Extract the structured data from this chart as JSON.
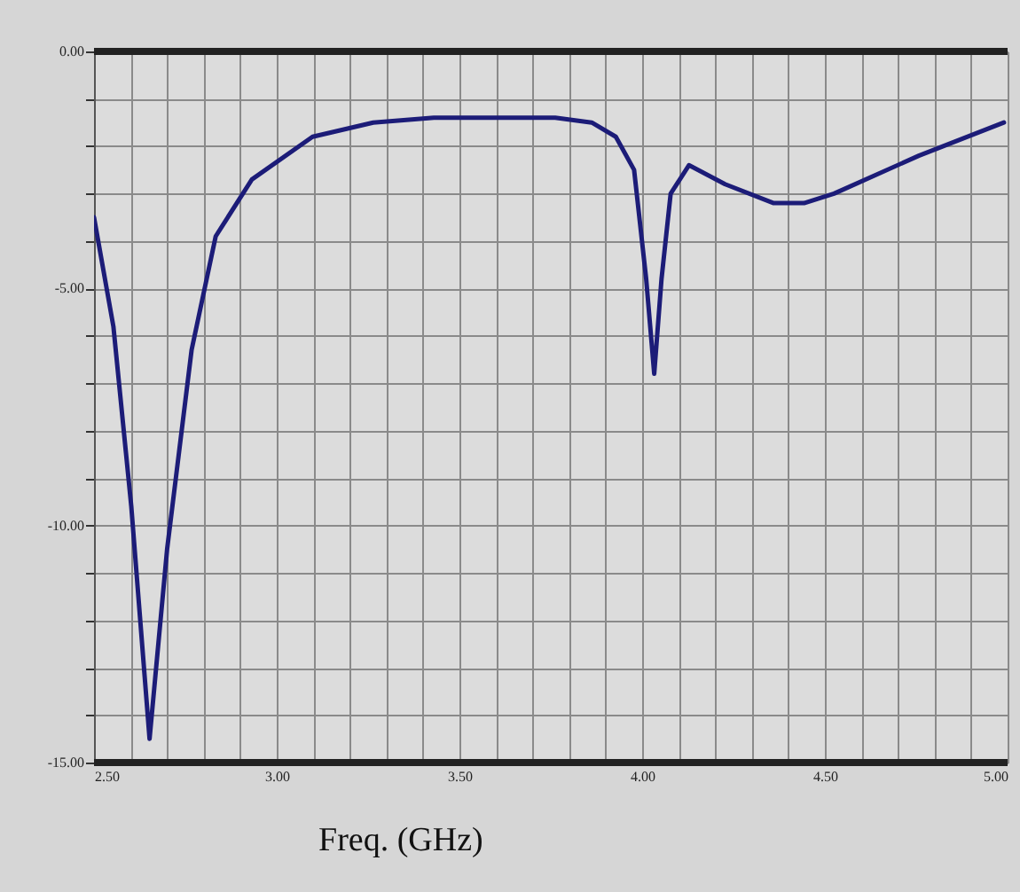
{
  "chart_data": {
    "type": "line",
    "xlabel": "Freq. (GHz)",
    "x": [
      2.5,
      2.553,
      2.602,
      2.652,
      2.7,
      2.767,
      2.833,
      2.932,
      3.098,
      3.264,
      3.43,
      3.596,
      3.762,
      3.862,
      3.928,
      3.978,
      4.011,
      4.033,
      4.053,
      4.078,
      4.128,
      4.227,
      4.36,
      4.443,
      4.525,
      4.757,
      4.99
    ],
    "series": [
      {
        "color": "#1c1c78",
        "values": [
          -3.5,
          -5.8,
          -9.6,
          -14.5,
          -10.5,
          -6.3,
          -3.9,
          -2.7,
          -1.8,
          -1.5,
          -1.4,
          -1.4,
          -1.4,
          -1.5,
          -1.8,
          -2.5,
          -4.8,
          -6.8,
          -4.8,
          -3.0,
          -2.4,
          -2.8,
          -3.2,
          -3.2,
          -3.0,
          -2.2,
          -1.5
        ]
      }
    ],
    "xlim": [
      2.5,
      5.0
    ],
    "ylim": [
      -15,
      0
    ],
    "xticks": [
      {
        "value": 2.5,
        "label": "2.50"
      },
      {
        "value": 2.6,
        "label": null
      },
      {
        "value": 2.7,
        "label": null
      },
      {
        "value": 2.8,
        "label": null
      },
      {
        "value": 2.9,
        "label": null
      },
      {
        "value": 3.0,
        "label": "3.00"
      },
      {
        "value": 3.1,
        "label": null
      },
      {
        "value": 3.2,
        "label": null
      },
      {
        "value": 3.3,
        "label": null
      },
      {
        "value": 3.4,
        "label": null
      },
      {
        "value": 3.5,
        "label": "3.50"
      },
      {
        "value": 3.6,
        "label": null
      },
      {
        "value": 3.7,
        "label": null
      },
      {
        "value": 3.8,
        "label": null
      },
      {
        "value": 3.9,
        "label": null
      },
      {
        "value": 4.0,
        "label": "4.00"
      },
      {
        "value": 4.1,
        "label": null
      },
      {
        "value": 4.2,
        "label": null
      },
      {
        "value": 4.3,
        "label": null
      },
      {
        "value": 4.4,
        "label": null
      },
      {
        "value": 4.5,
        "label": "4.50"
      },
      {
        "value": 4.6,
        "label": null
      },
      {
        "value": 4.7,
        "label": null
      },
      {
        "value": 4.8,
        "label": null
      },
      {
        "value": 4.9,
        "label": null
      },
      {
        "value": 5.0,
        "label": "5.00"
      }
    ],
    "yticks": [
      {
        "value": 0,
        "label": "0.00"
      },
      {
        "value": -1,
        "label": null
      },
      {
        "value": -2,
        "label": null
      },
      {
        "value": -3,
        "label": null
      },
      {
        "value": -4,
        "label": null
      },
      {
        "value": -5,
        "label": "-5.00"
      },
      {
        "value": -6,
        "label": null
      },
      {
        "value": -7,
        "label": null
      },
      {
        "value": -8,
        "label": null
      },
      {
        "value": -9,
        "label": null
      },
      {
        "value": -10,
        "label": "-10.00"
      },
      {
        "value": -11,
        "label": null
      },
      {
        "value": -12,
        "label": null
      },
      {
        "value": -13,
        "label": null
      },
      {
        "value": -14,
        "label": null
      },
      {
        "value": -15,
        "label": "-15.00"
      }
    ],
    "grid": true,
    "marker": "none"
  }
}
